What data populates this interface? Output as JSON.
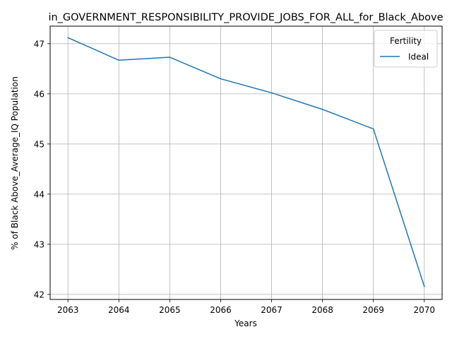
{
  "chart_data": {
    "type": "line",
    "title": "in_GOVERNMENT_RESPONSIBILITY_PROVIDE_JOBS_FOR_ALL_for_Black_Above",
    "xlabel": "Years",
    "ylabel": "% of Black Above_Average_IQ Population",
    "x": [
      2063,
      2064,
      2065,
      2066,
      2067,
      2068,
      2069,
      2070
    ],
    "xticks": [
      "2063",
      "2064",
      "2065",
      "2066",
      "2067",
      "2068",
      "2069",
      "2070"
    ],
    "yticks": [
      "42",
      "43",
      "44",
      "45",
      "46",
      "47"
    ],
    "xlim": [
      2062.65,
      2070.35
    ],
    "ylim": [
      41.9,
      47.35
    ],
    "grid": true,
    "legend": {
      "title": "Fertility",
      "placement": "top-right"
    },
    "series": [
      {
        "name": "Ideal",
        "color": "#1f77b4",
        "values": [
          47.12,
          46.67,
          46.73,
          46.3,
          46.02,
          45.69,
          45.3,
          42.16
        ]
      }
    ]
  }
}
